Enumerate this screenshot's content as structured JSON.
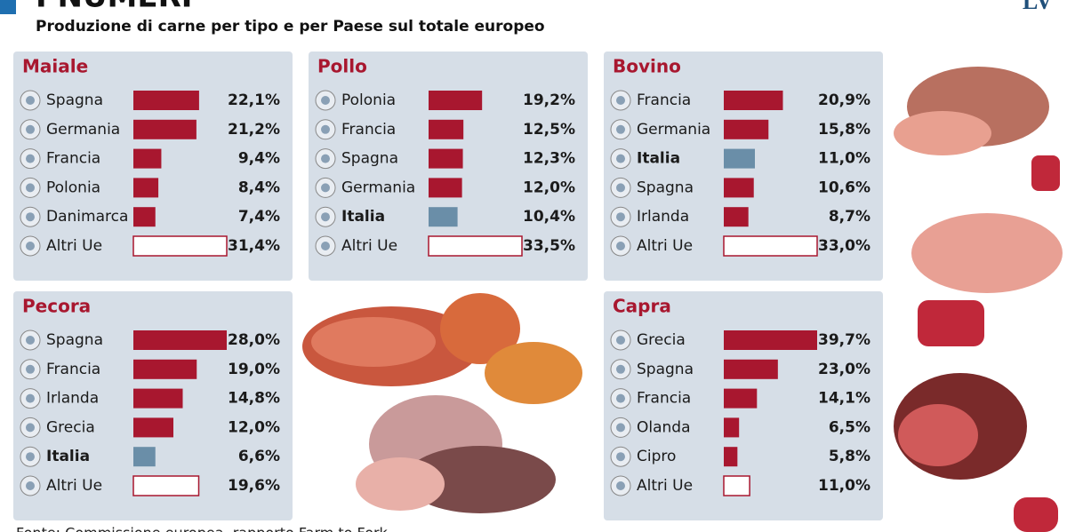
{
  "title": "I NUMERI",
  "subtitle": "Produzione di carne per tipo e per Paese sul totale europeo",
  "source": "Fonte: Commissione europea, rapporto Farm to Fork",
  "logo": "LV",
  "chart_data": [
    {
      "type": "bar",
      "title": "Maiale",
      "color": "#a8172f",
      "categories": [
        "Spagna",
        "Germania",
        "Francia",
        "Polonia",
        "Danimarca",
        "Altri Ue"
      ],
      "values": [
        22.1,
        21.2,
        9.4,
        8.4,
        7.4,
        31.4
      ],
      "value_labels": [
        "22,1%",
        "21,2%",
        "9,4%",
        "8,4%",
        "7,4%",
        "31,4%"
      ],
      "colors": [
        "#a8172f",
        "#a8172f",
        "#a8172f",
        "#a8172f",
        "#a8172f",
        "none"
      ]
    },
    {
      "type": "bar",
      "title": "Pollo",
      "color": "#a8172f",
      "categories": [
        "Polonia",
        "Francia",
        "Spagna",
        "Germania",
        "Italia",
        "Altri Ue"
      ],
      "values": [
        19.2,
        12.5,
        12.3,
        12.0,
        10.4,
        33.5
      ],
      "value_labels": [
        "19,2%",
        "12,5%",
        "12,3%",
        "12,0%",
        "10,4%",
        "33,5%"
      ],
      "colors": [
        "#a8172f",
        "#a8172f",
        "#a8172f",
        "#a8172f",
        "#6a8ea8",
        "none"
      ]
    },
    {
      "type": "bar",
      "title": "Bovino",
      "color": "#a8172f",
      "categories": [
        "Francia",
        "Germania",
        "Italia",
        "Spagna",
        "Irlanda",
        "Altri Ue"
      ],
      "values": [
        20.9,
        15.8,
        11.0,
        10.6,
        8.7,
        33.0
      ],
      "value_labels": [
        "20,9%",
        "15,8%",
        "11,0%",
        "10,6%",
        "8,7%",
        "33,0%"
      ],
      "colors": [
        "#a8172f",
        "#a8172f",
        "#6a8ea8",
        "#a8172f",
        "#a8172f",
        "none"
      ]
    },
    {
      "type": "bar",
      "title": "Pecora",
      "color": "#a8172f",
      "categories": [
        "Spagna",
        "Francia",
        "Irlanda",
        "Grecia",
        "Italia",
        "Altri Ue"
      ],
      "values": [
        28.0,
        19.0,
        14.8,
        12.0,
        6.6,
        19.6
      ],
      "value_labels": [
        "28,0%",
        "19,0%",
        "14,8%",
        "12,0%",
        "6,6%",
        "19,6%"
      ],
      "colors": [
        "#a8172f",
        "#a8172f",
        "#a8172f",
        "#a8172f",
        "#6a8ea8",
        "none"
      ]
    },
    {
      "type": "bar",
      "title": "Capra",
      "color": "#a8172f",
      "categories": [
        "Grecia",
        "Spagna",
        "Francia",
        "Olanda",
        "Cipro",
        "Altri Ue"
      ],
      "values": [
        39.7,
        23.0,
        14.1,
        6.5,
        5.8,
        11.0
      ],
      "value_labels": [
        "39,7%",
        "23,0%",
        "14,1%",
        "6,5%",
        "5,8%",
        "11,0%"
      ],
      "colors": [
        "#a8172f",
        "#a8172f",
        "#a8172f",
        "#a8172f",
        "#a8172f",
        "none"
      ]
    }
  ]
}
